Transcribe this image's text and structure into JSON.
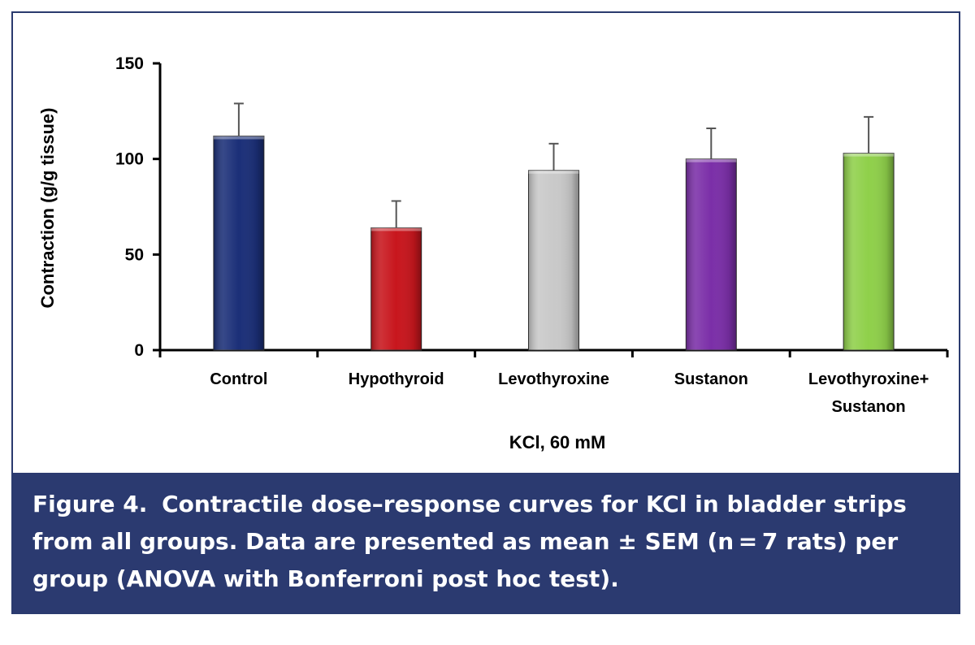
{
  "chart_data": {
    "type": "bar",
    "categories": [
      "Control",
      "Hypothyroid",
      "Levothyroxine",
      "Sustanon",
      "Levothyroxine+ Sustanon"
    ],
    "category_lines": [
      [
        "Control"
      ],
      [
        "Hypothyroid"
      ],
      [
        "Levothyroxine"
      ],
      [
        "Sustanon"
      ],
      [
        "Levothyroxine+",
        "Sustanon"
      ]
    ],
    "values": [
      112,
      64,
      94,
      100,
      103
    ],
    "errors": [
      17,
      14,
      14,
      16,
      19
    ],
    "colors": [
      "#1b2f78",
      "#c8161d",
      "#c9c9c9",
      "#7b2fa8",
      "#8fd04a"
    ],
    "xlabel": "KCl, 60 mM",
    "ylabel": "Contraction (g/g tissue)",
    "ylim": [
      0,
      150
    ],
    "yticks": [
      "0",
      "50",
      "100",
      "150"
    ],
    "ytick_values": [
      0,
      50,
      100,
      150
    ],
    "grid": false
  },
  "caption": {
    "label": "Figure 4.",
    "text": "Contractile dose–response curves for KCl in bladder strips from all groups. Data are presented as mean ± SEM (n = 7 rats) per group (ANOVA with Bonferroni post hoc test)."
  }
}
